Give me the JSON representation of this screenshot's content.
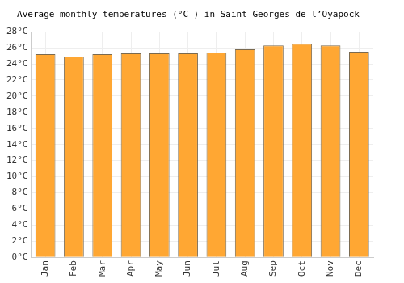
{
  "chart_data": {
    "type": "bar",
    "title": "Average monthly temperatures (°C ) in Saint-Georges-de-l’Oyapock",
    "categories": [
      "Jan",
      "Feb",
      "Mar",
      "Apr",
      "May",
      "Jun",
      "Jul",
      "Aug",
      "Sep",
      "Oct",
      "Nov",
      "Dec"
    ],
    "values": [
      25.2,
      24.9,
      25.2,
      25.3,
      25.3,
      25.3,
      25.4,
      25.8,
      26.3,
      26.5,
      26.3,
      25.5
    ],
    "color": "#ffa733",
    "ylim": [
      0,
      28
    ],
    "yticks": [
      {
        "value": 0,
        "label": "0°C"
      },
      {
        "value": 2,
        "label": "2°C"
      },
      {
        "value": 4,
        "label": "4°C"
      },
      {
        "value": 6,
        "label": "6°C"
      },
      {
        "value": 8,
        "label": "8°C"
      },
      {
        "value": 10,
        "label": "10°C"
      },
      {
        "value": 12,
        "label": "12°C"
      },
      {
        "value": 14,
        "label": "14°C"
      },
      {
        "value": 16,
        "label": "16°C"
      },
      {
        "value": 18,
        "label": "18°C"
      },
      {
        "value": 20,
        "label": "20°C"
      },
      {
        "value": 22,
        "label": "22°C"
      },
      {
        "value": 24,
        "label": "24°C"
      },
      {
        "value": 26,
        "label": "26°C"
      },
      {
        "value": 28,
        "label": "28°C"
      }
    ],
    "grid": true
  }
}
